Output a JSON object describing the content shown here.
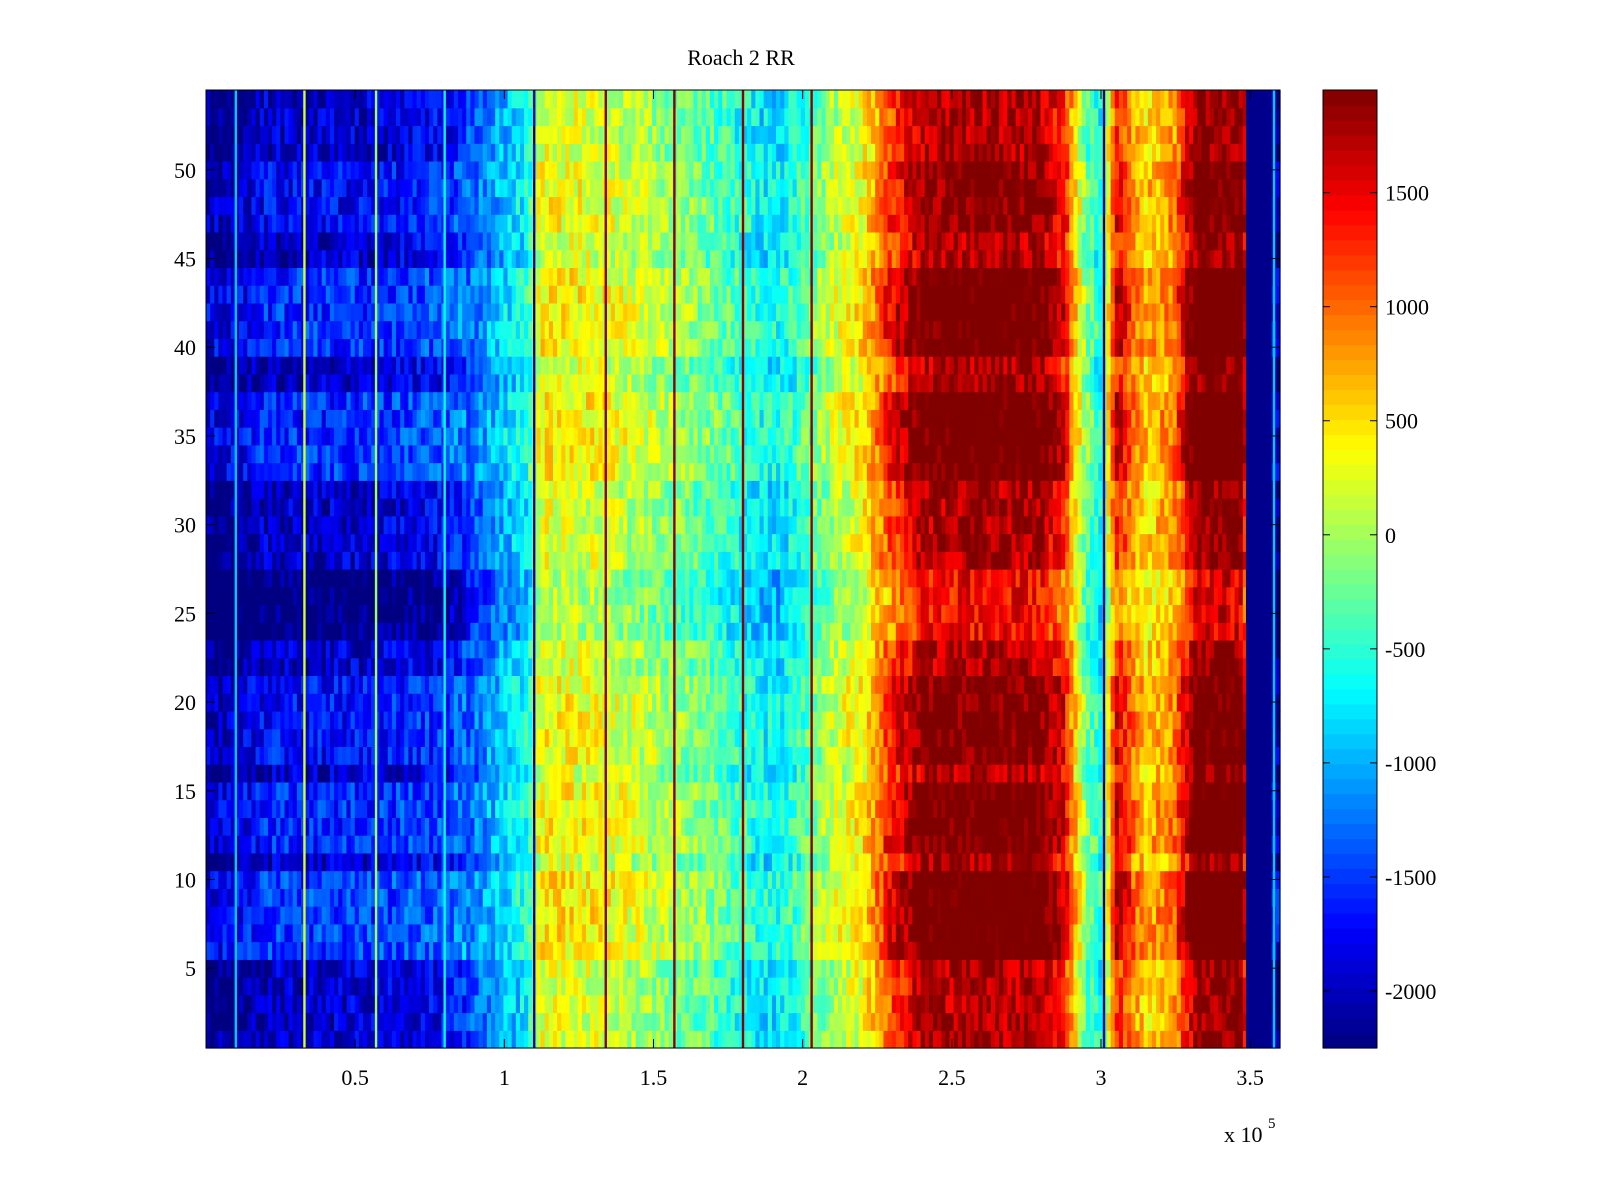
{
  "chart_data": {
    "type": "heatmap",
    "title": "Roach 2 RR",
    "xlabel": "",
    "ylabel": "",
    "x_multiplier_label": "x 10",
    "x_multiplier_exponent": "5",
    "xlim": [
      0,
      360000
    ],
    "ylim": [
      0.5,
      54.5
    ],
    "x_ticks": [
      50000,
      100000,
      150000,
      200000,
      250000,
      300000,
      350000
    ],
    "x_tick_labels": [
      "0.5",
      "1",
      "1.5",
      "2",
      "2.5",
      "3",
      "3.5"
    ],
    "y_ticks": [
      5,
      10,
      15,
      20,
      25,
      30,
      35,
      40,
      45,
      50
    ],
    "y_tick_labels": [
      "5",
      "10",
      "15",
      "20",
      "25",
      "30",
      "35",
      "40",
      "45",
      "50"
    ],
    "colorbar": {
      "colormap": "jet",
      "clim": [
        -2250,
        1950
      ],
      "ticks": [
        -2000,
        -1500,
        -1000,
        -500,
        0,
        500,
        1000,
        1500
      ],
      "tick_labels": [
        "-2000",
        "-1500",
        "-1000",
        "-500",
        "0",
        "500",
        "1000",
        "1500"
      ]
    },
    "column_profile": {
      "note": "approximate value vs x (same for all rows, with noise)",
      "x": [
        0,
        10000,
        20000,
        40000,
        60000,
        80000,
        90000,
        100000,
        108000,
        112000,
        130000,
        150000,
        170000,
        185000,
        192000,
        200000,
        210000,
        220000,
        228000,
        240000,
        260000,
        280000,
        288000,
        295000,
        300000,
        305000,
        315000,
        325000,
        332000,
        340000,
        348000,
        350000,
        360000
      ],
      "values": [
        -2200,
        -2200,
        -1950,
        -1950,
        -1900,
        -1750,
        -1400,
        -1000,
        -700,
        250,
        200,
        -50,
        -350,
        -750,
        -800,
        -500,
        0,
        300,
        1000,
        1700,
        1800,
        1750,
        1200,
        -300,
        -700,
        1300,
        500,
        800,
        1900,
        1900,
        1900,
        -2200,
        -2200
      ]
    },
    "vertical_lines": [
      {
        "x": 10000,
        "value": -900
      },
      {
        "x": 33000,
        "value": 200
      },
      {
        "x": 57000,
        "value": 0
      },
      {
        "x": 80000,
        "value": -700
      },
      {
        "x": 110000,
        "value": -2200
      },
      {
        "x": 134000,
        "value": 1900
      },
      {
        "x": 157000,
        "value": 1900
      },
      {
        "x": 180000,
        "value": 1900
      },
      {
        "x": 203000,
        "value": 1900
      },
      {
        "x": 301000,
        "value": -2200
      },
      {
        "x": 349000,
        "value": -2200
      },
      {
        "x": 358000,
        "value": -900
      }
    ],
    "row_bands": [
      {
        "rows": [
          6,
          10
        ],
        "offset": 450
      },
      {
        "rows": [
          12,
          15
        ],
        "offset": 350
      },
      {
        "rows": [
          17,
          21
        ],
        "offset": 250
      },
      {
        "rows": [
          24,
          27
        ],
        "offset": -350
      },
      {
        "rows": [
          33,
          37
        ],
        "offset": 400
      },
      {
        "rows": [
          40,
          44
        ],
        "offset": 400
      },
      {
        "rows": [
          47,
          50
        ],
        "offset": 200
      }
    ]
  }
}
